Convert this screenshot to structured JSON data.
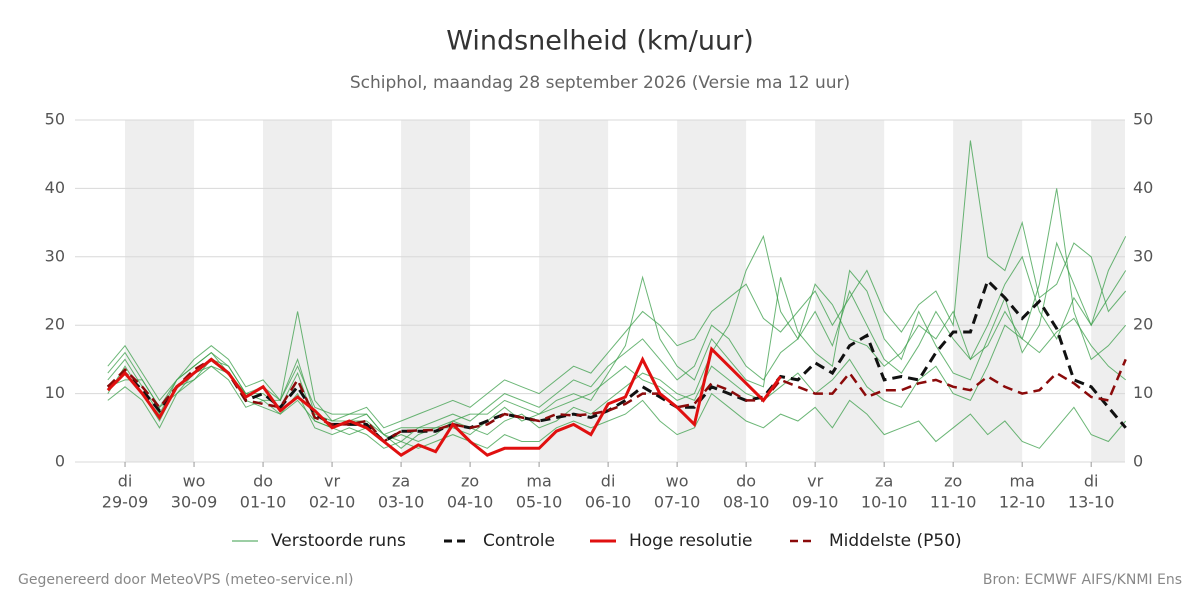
{
  "chart_data": {
    "type": "line",
    "title": "Windsnelheid (km/uur)",
    "subtitle": "Schiphol, maandag 28 september 2026 (Versie ma 12 uur)",
    "credit": "Gegenereerd door MeteoVPS (meteo-service.nl)",
    "source": "Bron: ECMWF AIFS/KNMI Ens",
    "xlim": [
      -0.725,
      14.49
    ],
    "xticks": [
      {
        "value": 0,
        "label": "di",
        "date": "29-09"
      },
      {
        "value": 1,
        "label": "wo",
        "date": "30-09"
      },
      {
        "value": 2,
        "label": "do",
        "date": "01-10"
      },
      {
        "value": 3,
        "label": "vr",
        "date": "02-10"
      },
      {
        "value": 4,
        "label": "za",
        "date": "03-10"
      },
      {
        "value": 5,
        "label": "zo",
        "date": "04-10"
      },
      {
        "value": 6,
        "label": "ma",
        "date": "05-10"
      },
      {
        "value": 7,
        "label": "di",
        "date": "06-10"
      },
      {
        "value": 8,
        "label": "wo",
        "date": "07-10"
      },
      {
        "value": 9,
        "label": "do",
        "date": "08-10"
      },
      {
        "value": 10,
        "label": "vr",
        "date": "09-10"
      },
      {
        "value": 11,
        "label": "za",
        "date": "10-10"
      },
      {
        "value": 12,
        "label": "zo",
        "date": "11-10"
      },
      {
        "value": 13,
        "label": "ma",
        "date": "12-10"
      },
      {
        "value": 14,
        "label": "di",
        "date": "13-10"
      }
    ],
    "ylim": [
      0,
      50
    ],
    "yticks": [
      0,
      10,
      20,
      30,
      40,
      50
    ],
    "grid": true,
    "legend": "bottom",
    "x": [
      -0.25,
      0,
      0.25,
      0.5,
      0.75,
      1,
      1.25,
      1.5,
      1.75,
      2,
      2.25,
      2.5,
      2.75,
      3,
      3.25,
      3.5,
      3.75,
      4,
      4.25,
      4.5,
      4.75,
      5,
      5.25,
      5.5,
      5.75,
      6,
      6.25,
      6.5,
      6.75,
      7,
      7.25,
      7.5,
      7.75,
      8,
      8.25,
      8.5,
      8.75,
      9,
      9.25,
      9.5,
      9.75,
      10,
      10.25,
      10.5,
      10.75,
      11,
      11.25,
      11.5,
      11.75,
      12,
      12.25,
      12.5,
      12.75,
      13,
      13.25,
      13.5,
      13.75,
      14,
      14.25,
      14.5
    ],
    "series": [
      {
        "name": "Verstoorde runs",
        "color": "#3a9e48",
        "width": 1,
        "dash": false,
        "members": [
          [
            12,
            15,
            11,
            7,
            12,
            14,
            16,
            14,
            10,
            10,
            8,
            13,
            6,
            5,
            6,
            7,
            4,
            3,
            5,
            6,
            7,
            6,
            8,
            10,
            9,
            8,
            10,
            12,
            11,
            14,
            16,
            18,
            15,
            12,
            14,
            20,
            18,
            14,
            12,
            16,
            18,
            22,
            17,
            25,
            20,
            15,
            13,
            17,
            22,
            18,
            15,
            20,
            26,
            30,
            22,
            18,
            24,
            20,
            28,
            33
          ],
          [
            9,
            11,
            9,
            5,
            10,
            12,
            14,
            12,
            8,
            9,
            7,
            10,
            5,
            4,
            5,
            4,
            2,
            3,
            2,
            3,
            4,
            3,
            2,
            4,
            3,
            3,
            5,
            6,
            5,
            6,
            7,
            9,
            6,
            4,
            5,
            10,
            8,
            6,
            5,
            7,
            6,
            8,
            5,
            9,
            7,
            4,
            5,
            6,
            3,
            5,
            7,
            4,
            6,
            3,
            2,
            5,
            8,
            4,
            3,
            6
          ],
          [
            14,
            17,
            13,
            9,
            12,
            15,
            17,
            15,
            11,
            12,
            9,
            14,
            8,
            7,
            7,
            8,
            5,
            6,
            7,
            8,
            9,
            8,
            10,
            12,
            11,
            10,
            12,
            14,
            13,
            16,
            19,
            22,
            20,
            17,
            18,
            22,
            24,
            26,
            21,
            19,
            22,
            25,
            20,
            24,
            28,
            22,
            19,
            23,
            25,
            20,
            47,
            30,
            28,
            35,
            24,
            26,
            32,
            30,
            22,
            25
          ],
          [
            11,
            12,
            12,
            8,
            10,
            13,
            14,
            13,
            9,
            8,
            7,
            9,
            6,
            5,
            4,
            5,
            3,
            4,
            3,
            4,
            6,
            5,
            4,
            6,
            7,
            5,
            6,
            8,
            7,
            9,
            11,
            13,
            12,
            10,
            9,
            14,
            12,
            10,
            9,
            11,
            13,
            10,
            12,
            15,
            11,
            9,
            8,
            12,
            14,
            10,
            9,
            14,
            20,
            18,
            26,
            40,
            22,
            15,
            17,
            20
          ],
          [
            10,
            14,
            10,
            6,
            11,
            12,
            15,
            14,
            10,
            11,
            9,
            15,
            7,
            6,
            6,
            6,
            4,
            5,
            5,
            5,
            6,
            7,
            7,
            9,
            8,
            7,
            8,
            9,
            10,
            12,
            14,
            12,
            11,
            9,
            10,
            16,
            20,
            28,
            33,
            22,
            18,
            26,
            23,
            18,
            17,
            14,
            16,
            20,
            18,
            22,
            15,
            17,
            22,
            18,
            16,
            19,
            21,
            17,
            14,
            12
          ],
          [
            13,
            16,
            12,
            8,
            12,
            14,
            16,
            13,
            10,
            9,
            9,
            22,
            9,
            6,
            7,
            7,
            4,
            2,
            4,
            5,
            5,
            4,
            6,
            8,
            6,
            7,
            9,
            10,
            9,
            13,
            17,
            27,
            18,
            14,
            12,
            18,
            15,
            12,
            11,
            27,
            19,
            16,
            14,
            28,
            25,
            18,
            15,
            22,
            17,
            13,
            12,
            18,
            24,
            16,
            20,
            32,
            26,
            20,
            24,
            28
          ]
        ]
      },
      {
        "name": "Controle",
        "color": "#111111",
        "width": 3,
        "dash": true,
        "values": [
          11,
          13,
          10.5,
          7.5,
          11,
          13,
          15,
          13,
          9,
          10,
          8,
          11,
          7,
          5.5,
          5.5,
          5.5,
          3,
          4.5,
          4.5,
          4.5,
          5.5,
          5,
          6,
          7,
          6.5,
          6,
          6.5,
          7,
          6.5,
          7.5,
          9,
          11,
          9.5,
          8,
          8,
          11,
          10,
          9,
          9.5,
          12.5,
          12,
          14.5,
          13,
          17,
          18.5,
          12,
          12.5,
          12,
          16,
          19,
          19,
          26.5,
          24,
          21,
          23.5,
          19.5,
          12,
          11,
          8,
          5
        ]
      },
      {
        "name": "Middelste (P50)",
        "color": "#8b0a0a",
        "width": 2.5,
        "dash": true,
        "values": [
          11,
          13.5,
          11,
          8,
          11,
          13.5,
          15,
          13,
          9,
          8.5,
          8,
          12,
          6.5,
          5.5,
          5.5,
          6,
          3,
          4.5,
          4.6,
          4.7,
          5.5,
          5,
          5.5,
          7,
          6.5,
          6,
          7,
          6.8,
          7,
          7.5,
          8.5,
          10,
          10,
          8,
          8.5,
          11.5,
          10.5,
          9,
          9,
          12,
          11,
          10,
          10,
          13,
          9.5,
          10.5,
          10.5,
          11.5,
          12,
          11,
          10.5,
          12.5,
          11,
          10,
          10.5,
          13,
          11.5,
          9.5,
          9,
          15
        ]
      },
      {
        "name": "Hoge resolutie",
        "color": "#e01010",
        "width": 3,
        "dash": false,
        "values": [
          10.5,
          13,
          10,
          6.5,
          11,
          13,
          15,
          13,
          9.5,
          11,
          7.5,
          9.5,
          7.5,
          5,
          6,
          5,
          3,
          1,
          2.5,
          1.5,
          5.5,
          3,
          1,
          2,
          2,
          2,
          4.5,
          5.5,
          4,
          8.5,
          9.5,
          15,
          10,
          8,
          5.5,
          16.5,
          14,
          11.5,
          9,
          12.5,
          null,
          null,
          null,
          null,
          null,
          null,
          null,
          null,
          null,
          null,
          null,
          null,
          null,
          null,
          null,
          null,
          null,
          null,
          null,
          null
        ]
      }
    ]
  }
}
